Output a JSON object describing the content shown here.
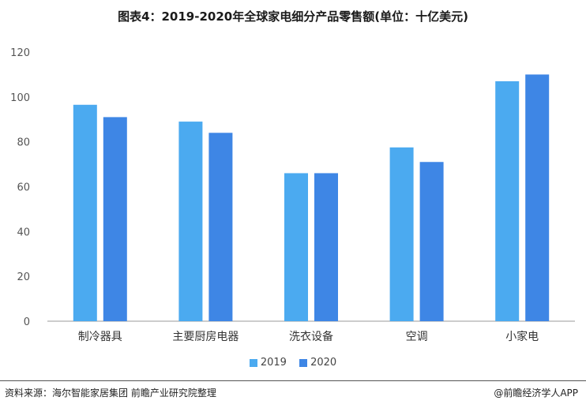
{
  "title": "图表4：2019-2020年全球家电细分产品零售额(单位：十亿美元)",
  "footer": {
    "source": "资料来源：海尔智能家居集团 前瞻产业研究院整理",
    "brand": "@前瞻经济学人APP"
  },
  "colors": {
    "s2019": "#4baaf0",
    "s2020": "#3e86e5",
    "axis": "#999999",
    "tick_text": "#555555"
  },
  "chart_data": {
    "type": "bar",
    "categories": [
      "制冷器具",
      "主要厨房电器",
      "洗衣设备",
      "空调",
      "小家电"
    ],
    "series": [
      {
        "name": "2019",
        "values": [
          96.5,
          89,
          66,
          77.5,
          107
        ]
      },
      {
        "name": "2020",
        "values": [
          91,
          84,
          66,
          71,
          110
        ]
      }
    ],
    "yticks": [
      "0",
      "20",
      "40",
      "60",
      "80",
      "100",
      "120"
    ],
    "ylim": [
      0,
      120
    ],
    "legend_position": "bottom-center",
    "grid": false
  }
}
